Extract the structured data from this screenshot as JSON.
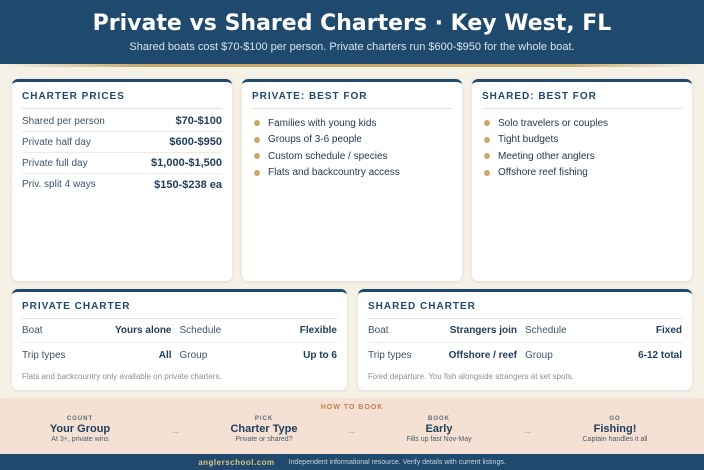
{
  "header": {
    "title": "Private vs Shared Charters · Key West, FL",
    "subtitle": "Shared boats cost $70-$100 per person. Private charters run $600-$950 for the whole boat."
  },
  "prices": {
    "title": "CHARTER PRICES",
    "rows": [
      {
        "label": "Shared per person",
        "value": "$70-$100"
      },
      {
        "label": "Private half day",
        "value": "$600-$950"
      },
      {
        "label": "Private full day",
        "value": "$1,000-$1,500"
      },
      {
        "label": "Priv. split 4 ways",
        "value": "$150-$238 ea"
      }
    ]
  },
  "private_best": {
    "title": "PRIVATE: BEST FOR",
    "items": [
      "Families with young kids",
      "Groups of 3-6 people",
      "Custom schedule / species",
      "Flats and backcountry access"
    ]
  },
  "shared_best": {
    "title": "SHARED: BEST FOR",
    "items": [
      "Solo travelers or couples",
      "Tight budgets",
      "Meeting other anglers",
      "Offshore reef fishing"
    ]
  },
  "private_charter": {
    "title": "PRIVATE CHARTER",
    "boat_label": "Boat",
    "boat_value": "Yours alone",
    "schedule_label": "Schedule",
    "schedule_value": "Flexible",
    "trip_label": "Trip types",
    "trip_value": "All",
    "group_label": "Group",
    "group_value": "Up to 6",
    "note": "Flats and backcountry only available on private charters."
  },
  "shared_charter": {
    "title": "SHARED CHARTER",
    "boat_label": "Boat",
    "boat_value": "Strangers join",
    "schedule_label": "Schedule",
    "schedule_value": "Fixed",
    "trip_label": "Trip types",
    "trip_value": "Offshore / reef",
    "group_label": "Group",
    "group_value": "6-12 total",
    "note": "Fixed departure. You fish alongside strangers at set spots."
  },
  "how_to_book": {
    "title": "HOW TO BOOK",
    "arrow": "→",
    "steps": [
      {
        "kicker": "COUNT",
        "title": "Your Group",
        "sub": "At 3+, private wins"
      },
      {
        "kicker": "PICK",
        "title": "Charter Type",
        "sub": "Private or shared?"
      },
      {
        "kicker": "BOOK",
        "title": "Early",
        "sub": "Fills up fast Nov-May"
      },
      {
        "kicker": "GO",
        "title": "Fishing!",
        "sub": "Captain handles it all"
      }
    ]
  },
  "footer": {
    "brand": "anglerschool.com",
    "text": "Independent informational resource. Verify details with current listings."
  },
  "colors": {
    "navy": "#1f4a6e",
    "gold": "#c9a86a",
    "cream": "#f6f1e7",
    "peach": "#f4e1d4"
  }
}
